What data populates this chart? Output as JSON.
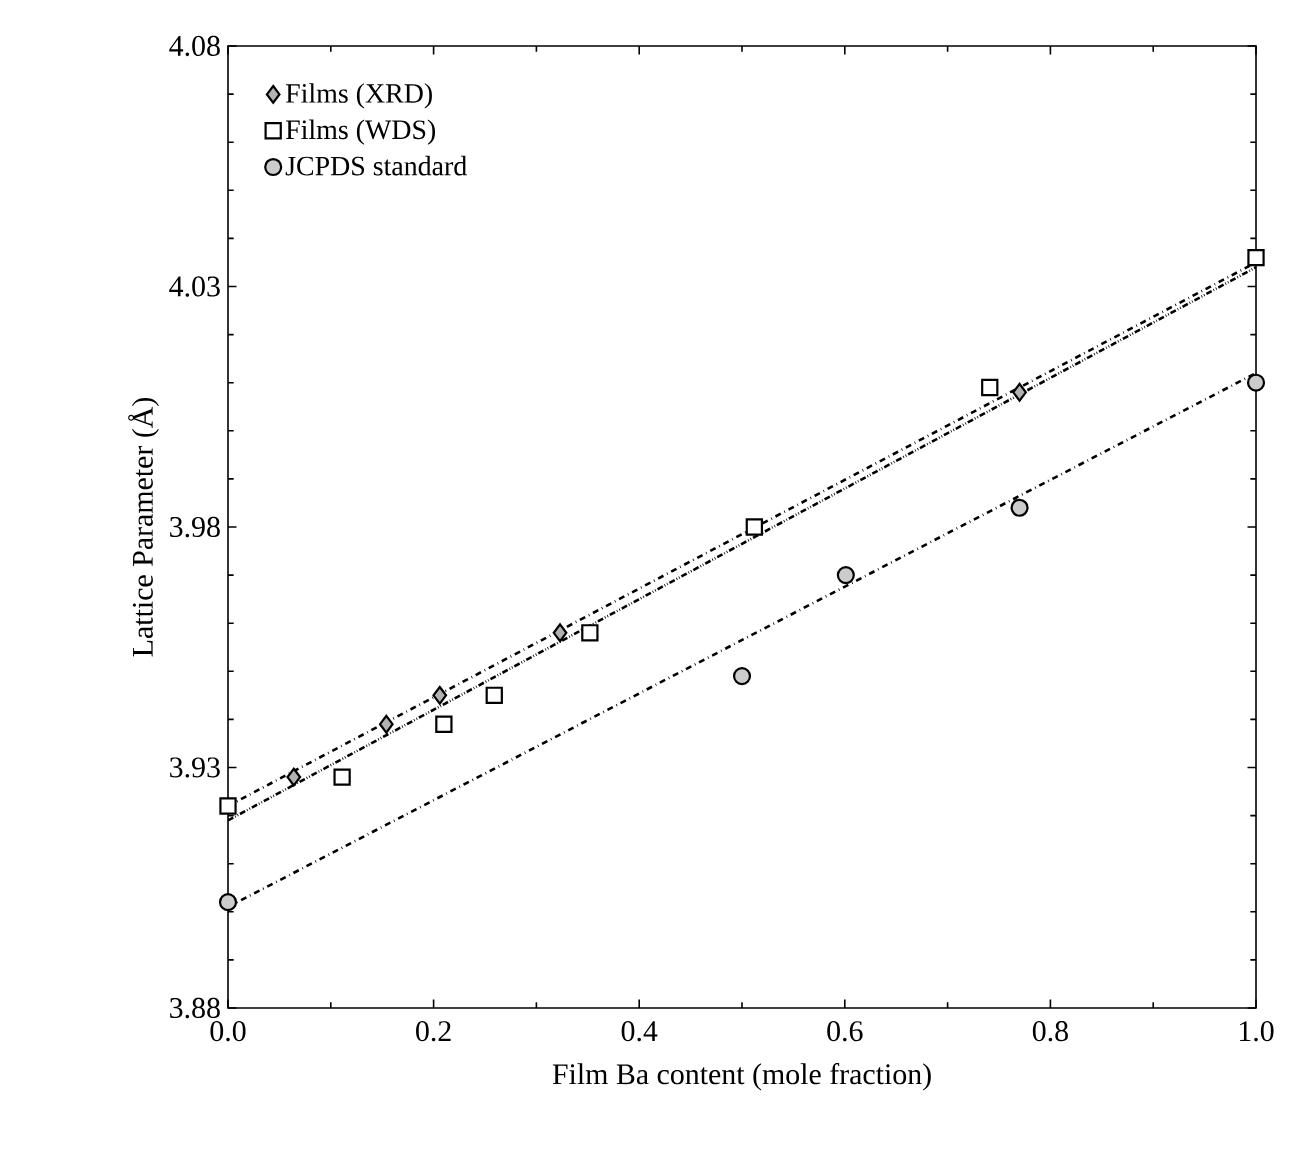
{
  "chart_data": {
    "type": "scatter",
    "xlabel": "Film Ba content (mole fraction)",
    "ylabel": "Lattice Parameter (Å)",
    "xlim": [
      0,
      1
    ],
    "ylim": [
      3.88,
      4.08
    ],
    "xticks": [
      {
        "value": 0,
        "label": "0.0"
      },
      0.2,
      0.4,
      0.6,
      0.8,
      {
        "value": 1,
        "label": "1.0"
      }
    ],
    "yticks": [
      3.88,
      3.93,
      3.98,
      4.03,
      4.08
    ],
    "legend": "top left",
    "grid": false,
    "series": [
      {
        "name": "Films (XRD)",
        "color": "#000000",
        "marker": "diamond",
        "x": [
          0.064,
          0.154,
          0.206,
          0.323,
          0.77
        ],
        "values": [
          3.928,
          3.939,
          3.945,
          3.958,
          4.008
        ]
      },
      {
        "name": "Films (WDS)",
        "color": "#000000",
        "marker": "square",
        "x": [
          0,
          0.111,
          0.21,
          0.259,
          0.352,
          0.512,
          0.741,
          1.0
        ],
        "values": [
          3.922,
          3.928,
          3.939,
          3.945,
          3.958,
          3.98,
          4.009,
          4.036
        ]
      },
      {
        "name": "JCPDS standard",
        "color": "#000000",
        "marker": "circle",
        "x": [
          0,
          0.5,
          0.601,
          0.77,
          1.0
        ],
        "values": [
          3.902,
          3.949,
          3.97,
          3.984,
          4.01
        ]
      },
      {
        "type": "line",
        "color": "#000000",
        "marker": "none",
        "line_style": "dotted",
        "x": [
          0,
          1
        ],
        "values": [
          3.919,
          4.034
        ]
      },
      {
        "type": "line",
        "color": "#000000",
        "marker": "none",
        "line_style": "dashed",
        "x": [
          0,
          1
        ],
        "values": [
          3.922,
          4.035
        ]
      },
      {
        "type": "line",
        "color": "#000000",
        "marker": "none",
        "line_style": "dashed",
        "x": [
          0,
          1
        ],
        "values": [
          3.901,
          4.012
        ]
      }
    ]
  }
}
